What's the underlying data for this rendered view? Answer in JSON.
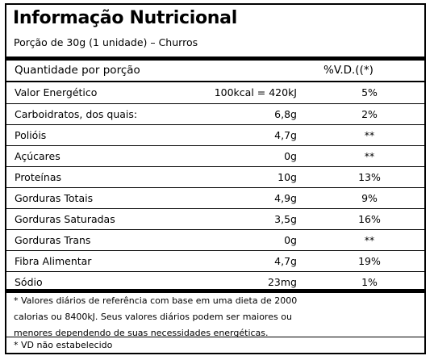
{
  "title": "Informação Nutricional",
  "portion": "Porção de 30g (1 unidade) – Churros",
  "header": {
    "quantity_label": "Quantidade por porção",
    "vd_label": "%V.D.((*)"
  },
  "rows": [
    {
      "name": "Valor Energético",
      "qty": "100kcal = 420kJ",
      "vd": "5%"
    },
    {
      "name": "Carboidratos, dos quais:",
      "qty": "6,8g",
      "vd": "2%"
    },
    {
      "name": "Polióis",
      "qty": "4,7g",
      "vd": "**"
    },
    {
      "name": "Açúcares",
      "qty": "0g",
      "vd": "**"
    },
    {
      "name": "Proteínas",
      "qty": "10g",
      "vd": "13%"
    },
    {
      "name": "Gorduras Totais",
      "qty": "4,9g",
      "vd": "9%"
    },
    {
      "name": "Gorduras Saturadas",
      "qty": "3,5g",
      "vd": "16%"
    },
    {
      "name": "Gorduras Trans",
      "qty": "0g",
      "vd": "**"
    },
    {
      "name": "Fibra Alimentar",
      "qty": "4,7g",
      "vd": "19%"
    },
    {
      "name": "Sódio",
      "qty": "23mg",
      "vd": "1%"
    }
  ],
  "footnote": {
    "lines": [
      "* Valores diários de referência com base em uma dieta de 2000",
      "calorias ou 8400kJ. Seus valores diários podem ser maiores ou",
      "menores dependendo de suas necessidades energéticas."
    ],
    "vd_note": "* VD não estabelecido"
  }
}
